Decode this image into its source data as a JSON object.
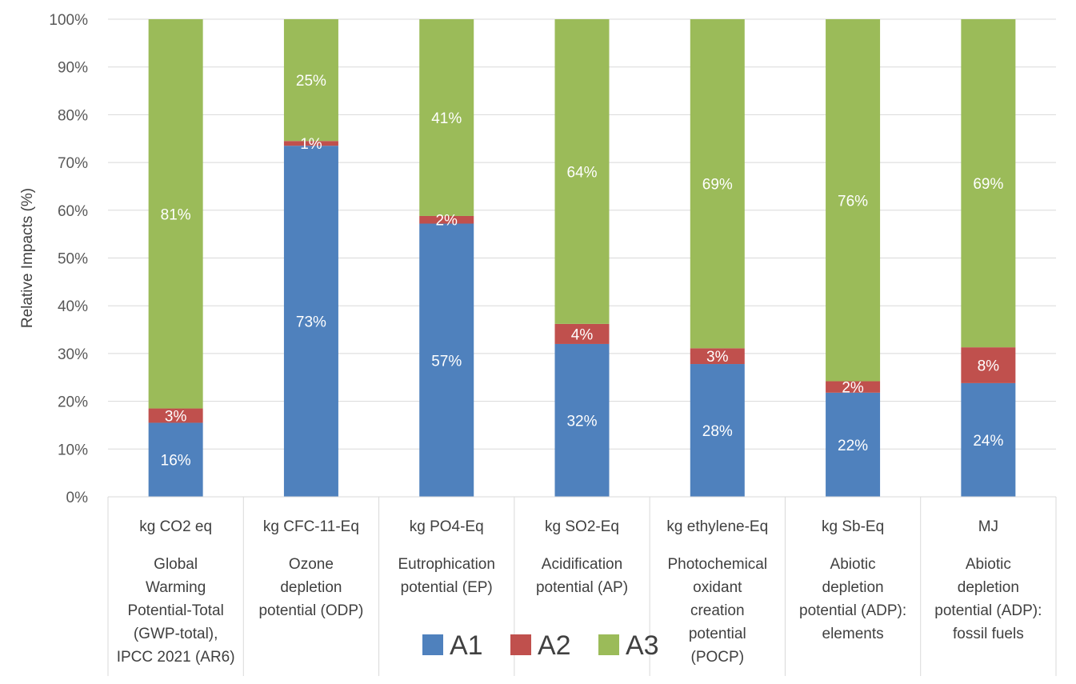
{
  "chart_data": {
    "type": "bar",
    "stacked": true,
    "normalized_percent": true,
    "ylabel": "Relative Impacts (%)",
    "ylim": [
      0,
      100
    ],
    "yticks": [
      "0%",
      "10%",
      "20%",
      "30%",
      "40%",
      "50%",
      "60%",
      "70%",
      "80%",
      "90%",
      "100%"
    ],
    "grid": true,
    "legend_position": "bottom",
    "categories": [
      {
        "unit": "kg CO2 eq",
        "lines": [
          "Global",
          "Warming",
          "Potential-Total",
          "(GWP-total),",
          "IPCC 2021 (AR6)"
        ]
      },
      {
        "unit": "kg CFC-11-Eq",
        "lines": [
          "Ozone",
          "depletion",
          "potential (ODP)"
        ]
      },
      {
        "unit": "kg PO4-Eq",
        "lines": [
          "Eutrophication",
          "potential (EP)"
        ]
      },
      {
        "unit": "kg SO2-Eq",
        "lines": [
          "Acidification",
          "potential (AP)"
        ]
      },
      {
        "unit": "kg ethylene-Eq",
        "lines": [
          "Photochemical",
          "oxidant",
          "creation",
          "potential",
          "(POCP)"
        ]
      },
      {
        "unit": "kg Sb-Eq",
        "lines": [
          "Abiotic",
          "depletion",
          "potential (ADP):",
          "elements"
        ]
      },
      {
        "unit": "MJ",
        "lines": [
          "Abiotic",
          "depletion",
          "potential (ADP):",
          "fossil fuels"
        ]
      }
    ],
    "series": [
      {
        "name": "A1",
        "color": "#4f81bd",
        "values": [
          15.5,
          73.5,
          57.2,
          32.0,
          27.8,
          21.8,
          23.8
        ],
        "labels": [
          "16%",
          "73%",
          "57%",
          "32%",
          "28%",
          "22%",
          "24%"
        ]
      },
      {
        "name": "A2",
        "color": "#c0504d",
        "values": [
          3.0,
          1.0,
          1.6,
          4.2,
          3.3,
          2.4,
          7.5
        ],
        "labels": [
          "3%",
          "1%",
          "2%",
          "4%",
          "3%",
          "2%",
          "8%"
        ]
      },
      {
        "name": "A3",
        "color": "#9bbb59",
        "values": [
          81.5,
          25.5,
          41.2,
          63.8,
          68.9,
          75.8,
          68.7
        ],
        "labels": [
          "81%",
          "25%",
          "41%",
          "64%",
          "69%",
          "76%",
          "69%"
        ]
      }
    ]
  }
}
